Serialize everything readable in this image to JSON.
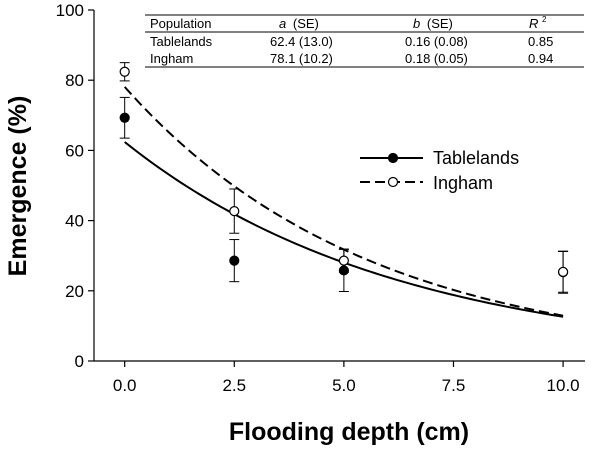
{
  "chart_data": {
    "type": "scatter",
    "xlabel": "Flooding depth (cm)",
    "ylabel": "Emergence (%)",
    "xlim": [
      -0.7,
      10.5
    ],
    "ylim": [
      0,
      100
    ],
    "x_ticks": [
      "0.0",
      "2.5",
      "5.0",
      "7.5",
      "10.0"
    ],
    "y_ticks": [
      "0",
      "20",
      "40",
      "60",
      "80",
      "100"
    ],
    "legend_position": "right-middle",
    "series": [
      {
        "name": "Tablelands",
        "marker": "filled-circle",
        "line_style": "solid",
        "points": [
          {
            "x": 0.0,
            "y": 69.3,
            "err": 5.8
          },
          {
            "x": 2.5,
            "y": 28.6,
            "err": 6.0
          },
          {
            "x": 5.0,
            "y": 25.8,
            "err": 6.0
          },
          {
            "x": 10.0,
            "y": 25.3,
            "err": 6.0
          }
        ],
        "fit": {
          "a": 62.4,
          "b": 0.16
        }
      },
      {
        "name": "Ingham",
        "marker": "open-circle",
        "line_style": "dashed",
        "points": [
          {
            "x": 0.0,
            "y": 82.4,
            "err": 2.6
          },
          {
            "x": 2.5,
            "y": 42.7,
            "err": 6.3
          },
          {
            "x": 5.0,
            "y": 28.6,
            "err": 3.3
          },
          {
            "x": 10.0,
            "y": 25.4,
            "err": 5.8
          }
        ],
        "fit": {
          "a": 78.1,
          "b": 0.18
        }
      }
    ],
    "fit_table": {
      "headers": [
        "Population",
        "a",
        "(SE)",
        "b",
        "(SE)",
        "R",
        "2"
      ],
      "rows": [
        [
          "Tablelands",
          "62.4 (13.0)",
          "0.16 (0.08)",
          "0.85"
        ],
        [
          "Ingham",
          "78.1 (10.2)",
          "0.18 (0.05)",
          "0.94"
        ]
      ]
    }
  },
  "colors": {
    "line": "#000000",
    "open_marker_fill": "#ffffff",
    "background": "#ffffff"
  }
}
